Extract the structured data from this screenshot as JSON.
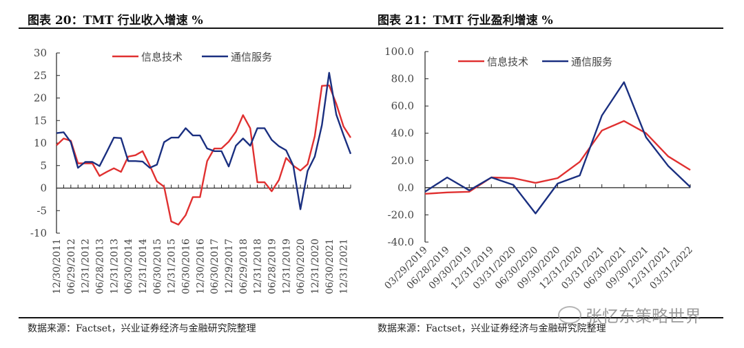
{
  "left": {
    "title": "图表 20：TMT 行业收入增速 %",
    "source": "数据来源：Factset，兴业证券经济与金融研究院整理"
  },
  "right": {
    "title": "图表 21：TMT 行业盈利增速 %",
    "source": "数据来源：Factset，兴业证券经济与金融研究院整理"
  },
  "watermark": "张忆东策略世界",
  "colors": {
    "series1": "#e03030",
    "series2": "#1a2f80"
  },
  "chart_data": [
    {
      "type": "line",
      "title": "TMT 行业收入增速 %",
      "ylim": [
        -10,
        30
      ],
      "yticks": [
        -10,
        -5,
        0,
        5,
        10,
        15,
        20,
        25,
        30
      ],
      "ytick_format": 0,
      "x_labels": [
        "12/30/2011",
        "06/29/2012",
        "12/31/2012",
        "06/28/2013",
        "12/31/2013",
        "06/30/2014",
        "12/31/2014",
        "06/30/2015",
        "12/31/2015",
        "06/30/2016",
        "12/30/2016",
        "06/30/2017",
        "12/29/2017",
        "06/29/2018",
        "12/31/2018",
        "06/28/2019",
        "12/31/2019",
        "06/30/2020",
        "12/31/2020",
        "06/30/2021",
        "12/31/2021"
      ],
      "legend": "top-center",
      "series": [
        {
          "name": "信息技术",
          "values": [
            9.5,
            11,
            10.5,
            5.5,
            5.5,
            5.5,
            2.7,
            3.6,
            4.4,
            3.6,
            7,
            7.3,
            8.2,
            5,
            1.5,
            0.3,
            -7.4,
            -8.1,
            -6,
            -2,
            -2,
            6,
            8.8,
            8.8,
            10.3,
            12.5,
            16.2,
            13.3,
            1.3,
            1.3,
            -0.7,
            1.8,
            6.7,
            5,
            3.9,
            5.3,
            11.5,
            22.7,
            22.8,
            18.7,
            13.7,
            11.2
          ]
        },
        {
          "name": "通信服务",
          "values": [
            12.2,
            12.4,
            10.2,
            4.5,
            5.8,
            5.8,
            4.9,
            8,
            11.2,
            11.1,
            6,
            6,
            5.9,
            4.5,
            5.2,
            10.2,
            11.2,
            11.2,
            13.3,
            11.7,
            11.7,
            8.8,
            8.2,
            8.2,
            4.8,
            9.4,
            11,
            9.4,
            13.3,
            13.3,
            10.7,
            9.3,
            8.4,
            5,
            -4.7,
            3.8,
            7,
            14,
            25.6,
            16.3,
            11.8,
            7.6
          ]
        }
      ]
    },
    {
      "type": "line",
      "title": "TMT 行业盈利增速 %",
      "ylim": [
        -40,
        100
      ],
      "yticks": [
        -40,
        -20,
        0,
        20,
        40,
        60,
        80,
        100
      ],
      "ytick_format": 1,
      "x_labels": [
        "03/29/2019",
        "06/28/2019",
        "09/30/2019",
        "12/31/2019",
        "03/31/2020",
        "06/30/2020",
        "09/30/2020",
        "12/31/2020",
        "03/31/2021",
        "06/30/2021",
        "09/30/2021",
        "12/31/2021",
        "03/31/2022"
      ],
      "legend": "top-center",
      "series": [
        {
          "name": "信息技术",
          "values": [
            -4.5,
            -3.5,
            -3,
            7.5,
            7,
            3.5,
            7,
            19,
            42,
            49,
            40,
            23,
            13
          ]
        },
        {
          "name": "通信服务",
          "values": [
            -3,
            7.5,
            -2,
            7.5,
            2,
            -19,
            3,
            9,
            53,
            77.5,
            37,
            16,
            0.5
          ]
        }
      ]
    }
  ]
}
